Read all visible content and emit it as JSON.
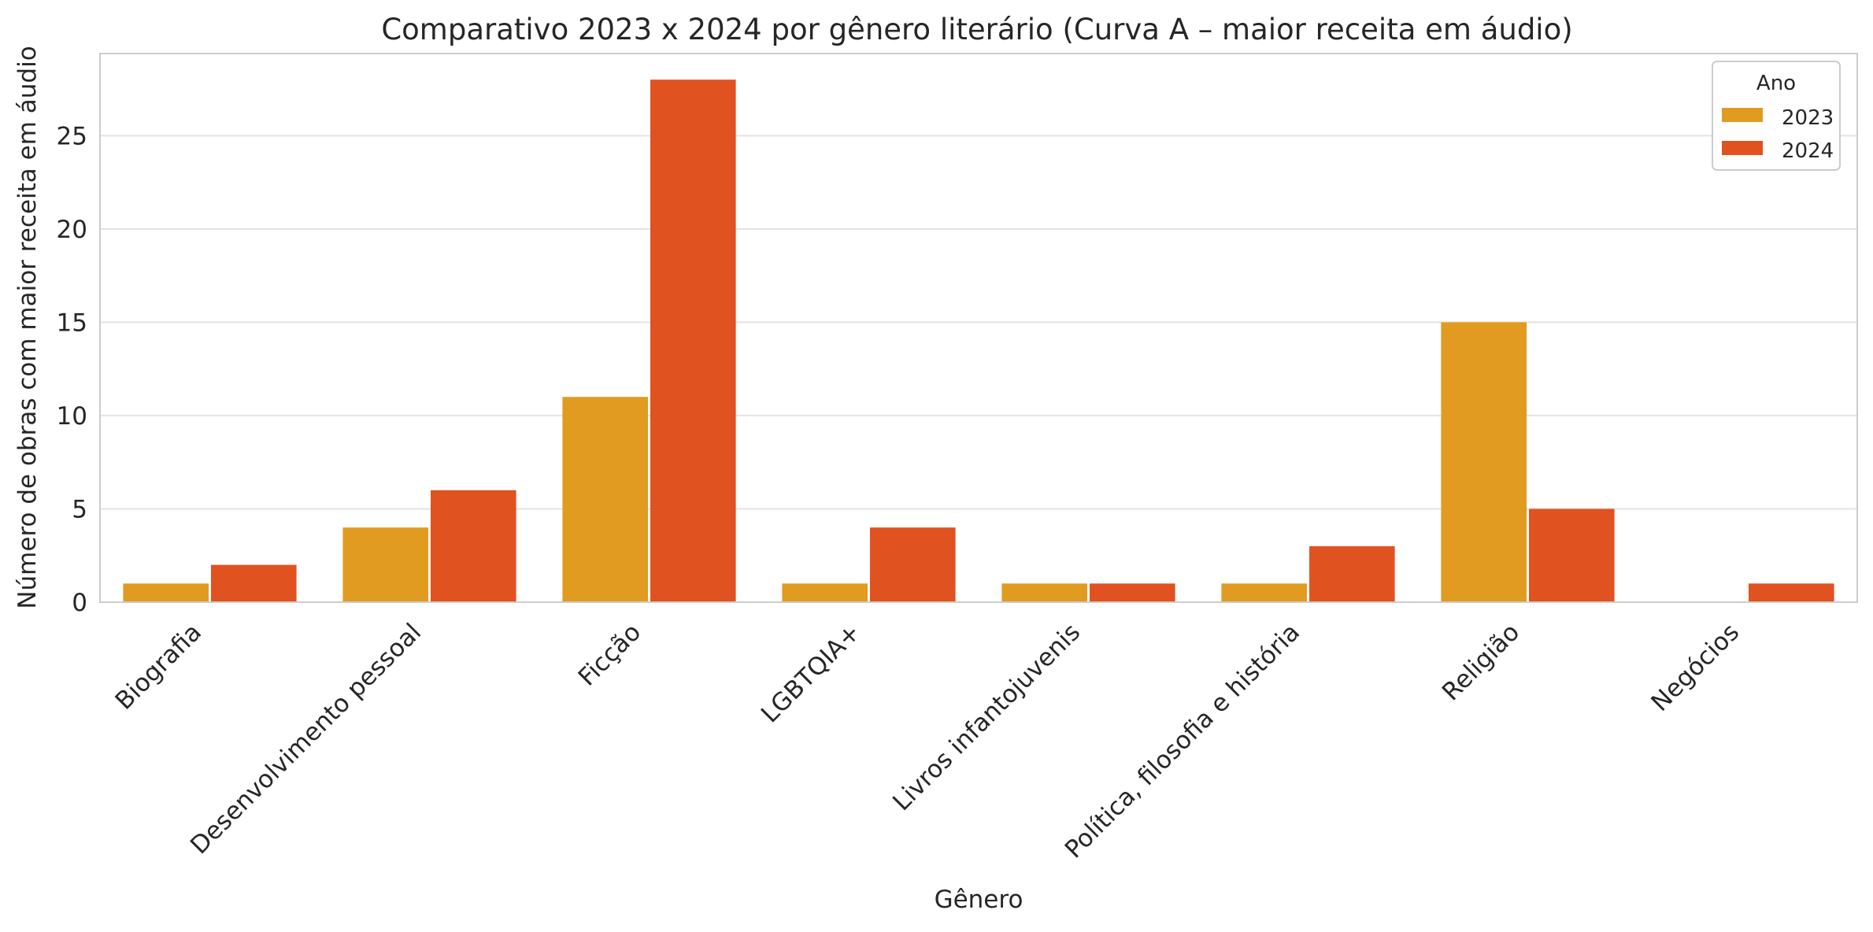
{
  "chart_data": {
    "type": "bar",
    "title": "Comparativo 2023 x 2024 por gênero literário (Curva A – maior receita em áudio)",
    "xlabel": "Gênero",
    "ylabel": "Número de obras com maior receita em áudio",
    "categories": [
      "Biografia",
      "Desenvolvimento pessoal",
      "Ficção",
      "LGBTQIA+",
      "Livros infantojuvenis",
      "Política, filosofia e história",
      "Religião",
      "Negócios"
    ],
    "series": [
      {
        "name": "2023",
        "color": "#e09b20",
        "values": [
          1,
          4,
          11,
          1,
          1,
          1,
          15,
          0
        ]
      },
      {
        "name": "2024",
        "color": "#e05220",
        "values": [
          2,
          6,
          28,
          4,
          1,
          3,
          5,
          1
        ]
      }
    ],
    "ylim": [
      0,
      29.4
    ],
    "yticks": [
      0,
      5,
      10,
      15,
      20,
      25
    ],
    "grid": "horizontal",
    "legend": {
      "title": "Ano",
      "placement": "top-right"
    }
  }
}
